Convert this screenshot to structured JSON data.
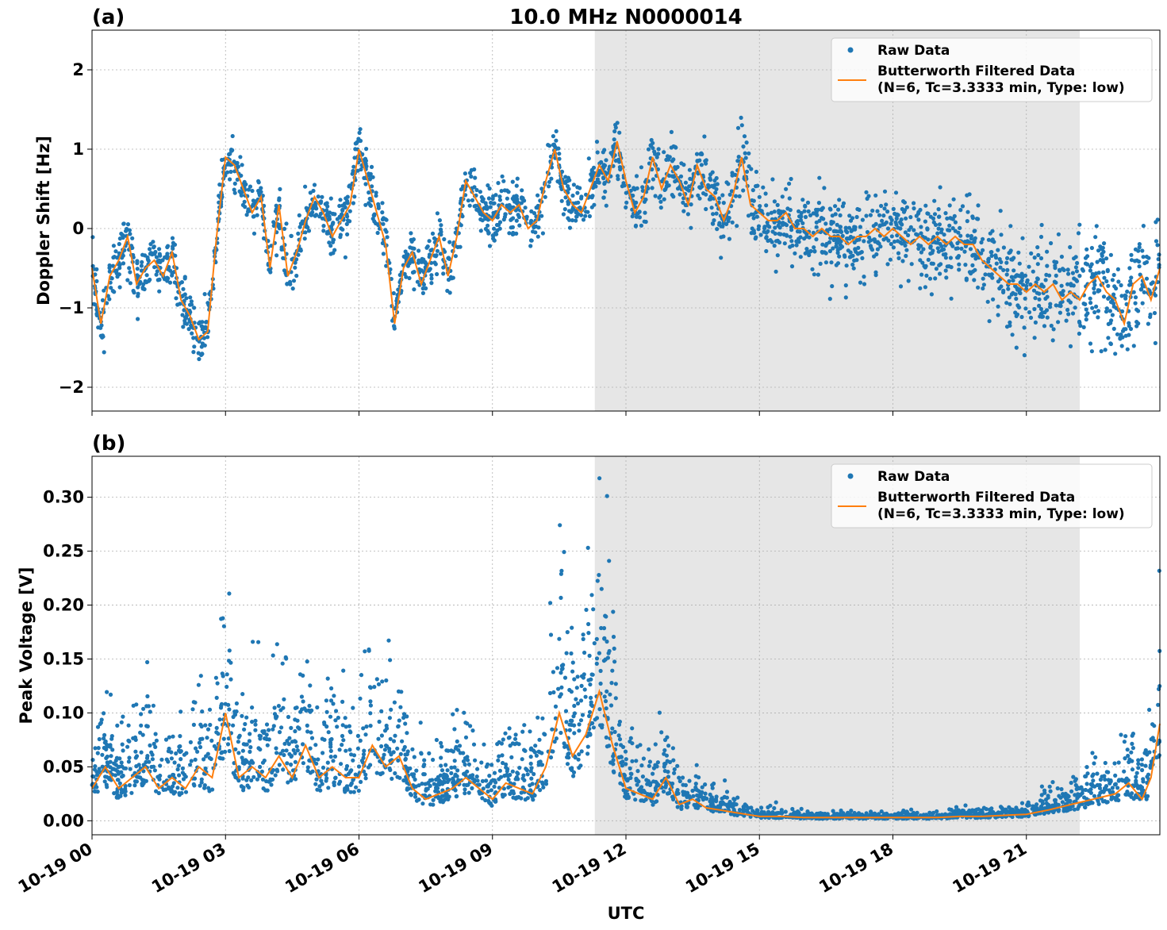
{
  "figure": {
    "title": "10.0 MHz N0000014",
    "xlabel": "UTC",
    "x_tick_labels": [
      "10-19 00",
      "10-19 03",
      "10-19 06",
      "10-19 09",
      "10-19 12",
      "10-19 15",
      "10-19 18",
      "10-19 21"
    ],
    "x_ticks_hours": [
      0,
      3,
      6,
      9,
      12,
      15,
      18,
      21
    ],
    "x_range_hours": [
      0,
      24
    ],
    "shaded_span_hours": [
      11.3,
      22.2
    ],
    "colors": {
      "raw": "#1f77b4",
      "filtered": "#ff7f0e",
      "shade": "#e6e6e6",
      "grid": "#b0b0b0"
    }
  },
  "legend": {
    "raw_label": "Raw Data",
    "filtered_label_line1": "Butterworth Filtered Data",
    "filtered_label_line2": "(N=6, Tc=3.3333 min, Type: low)",
    "placement": "top-right"
  },
  "chart_data": [
    {
      "type": "scatter",
      "panel_label": "(a)",
      "ylabel": "Doppler Shift [Hz]",
      "ylim": [
        -2.3,
        2.5
      ],
      "y_ticks": [
        -2,
        -1,
        0,
        1,
        2
      ],
      "y_tick_labels": [
        "−2",
        "−1",
        "0",
        "1",
        "2"
      ],
      "grid": true,
      "filtered_series": {
        "name": "Butterworth Filtered Data",
        "x_hours": [
          0,
          0.2,
          0.4,
          0.6,
          0.8,
          1.0,
          1.2,
          1.4,
          1.6,
          1.8,
          2.0,
          2.2,
          2.4,
          2.6,
          2.8,
          3.0,
          3.2,
          3.4,
          3.6,
          3.8,
          4.0,
          4.2,
          4.4,
          4.6,
          4.8,
          5.0,
          5.2,
          5.4,
          5.6,
          5.8,
          6.0,
          6.2,
          6.4,
          6.6,
          6.8,
          7.0,
          7.2,
          7.4,
          7.6,
          7.8,
          8.0,
          8.2,
          8.4,
          8.6,
          8.8,
          9.0,
          9.2,
          9.4,
          9.6,
          9.8,
          10.0,
          10.2,
          10.4,
          10.6,
          10.8,
          11.0,
          11.2,
          11.4,
          11.6,
          11.8,
          12.0,
          12.2,
          12.4,
          12.6,
          12.8,
          13.0,
          13.2,
          13.4,
          13.6,
          13.8,
          14.0,
          14.2,
          14.4,
          14.6,
          14.8,
          15.0,
          15.2,
          15.4,
          15.6,
          15.8,
          16.0,
          16.2,
          16.4,
          16.6,
          16.8,
          17.0,
          17.2,
          17.4,
          17.6,
          17.8,
          18.0,
          18.2,
          18.4,
          18.6,
          18.8,
          19.0,
          19.2,
          19.4,
          19.6,
          19.8,
          20.0,
          20.2,
          20.4,
          20.6,
          20.8,
          21.0,
          21.2,
          21.4,
          21.6,
          21.8,
          22.0,
          22.2,
          22.4,
          22.6,
          22.8,
          23.0,
          23.2,
          23.4,
          23.6,
          23.8,
          24.0
        ],
        "y": [
          -0.5,
          -1.2,
          -0.6,
          -0.4,
          -0.1,
          -0.7,
          -0.5,
          -0.4,
          -0.6,
          -0.3,
          -0.9,
          -1.1,
          -1.4,
          -1.3,
          -0.1,
          0.9,
          0.8,
          0.5,
          0.2,
          0.4,
          -0.5,
          0.3,
          -0.6,
          -0.3,
          0.1,
          0.4,
          0.2,
          -0.1,
          0.1,
          0.3,
          1.0,
          0.6,
          0.2,
          -0.2,
          -1.2,
          -0.5,
          -0.3,
          -0.7,
          -0.4,
          -0.1,
          -0.6,
          -0.1,
          0.6,
          0.4,
          0.2,
          0.1,
          0.3,
          0.2,
          0.3,
          0.0,
          0.1,
          0.6,
          1.0,
          0.5,
          0.3,
          0.2,
          0.5,
          0.8,
          0.6,
          1.1,
          0.6,
          0.2,
          0.4,
          0.9,
          0.5,
          0.8,
          0.6,
          0.3,
          0.8,
          0.5,
          0.4,
          0.1,
          0.4,
          0.9,
          0.3,
          0.2,
          0.1,
          0.1,
          0.2,
          0.0,
          0.0,
          -0.1,
          0.0,
          -0.1,
          -0.1,
          -0.2,
          -0.1,
          -0.1,
          0.0,
          -0.1,
          0.0,
          -0.1,
          -0.2,
          -0.1,
          -0.2,
          -0.1,
          -0.2,
          -0.1,
          -0.2,
          -0.2,
          -0.4,
          -0.5,
          -0.6,
          -0.7,
          -0.7,
          -0.8,
          -0.7,
          -0.8,
          -0.7,
          -0.9,
          -0.8,
          -0.9,
          -0.7,
          -0.6,
          -0.8,
          -0.9,
          -1.2,
          -0.7,
          -0.6,
          -0.9,
          -0.5
        ]
      },
      "raw_series": {
        "name": "Raw Data",
        "spread": [
          0.3,
          0.3,
          0.3,
          0.3,
          0.3,
          0.3,
          0.3,
          0.3,
          0.35,
          0.4,
          0.45,
          0.5,
          0.55,
          0.6,
          0.65
        ]
      }
    },
    {
      "type": "scatter",
      "panel_label": "(b)",
      "ylabel": "Peak Voltage [V]",
      "ylim": [
        -0.013,
        0.338
      ],
      "y_ticks": [
        0.0,
        0.05,
        0.1,
        0.15,
        0.2,
        0.25,
        0.3
      ],
      "y_tick_labels": [
        "0.00",
        "0.05",
        "0.10",
        "0.15",
        "0.20",
        "0.25",
        "0.30"
      ],
      "grid": true,
      "filtered_series": {
        "name": "Butterworth Filtered Data",
        "x_hours": [
          0,
          0.3,
          0.6,
          0.9,
          1.2,
          1.5,
          1.8,
          2.1,
          2.4,
          2.7,
          3.0,
          3.3,
          3.6,
          3.9,
          4.2,
          4.5,
          4.8,
          5.1,
          5.4,
          5.7,
          6.0,
          6.3,
          6.6,
          6.9,
          7.2,
          7.5,
          7.8,
          8.1,
          8.4,
          8.7,
          9.0,
          9.3,
          9.6,
          9.9,
          10.2,
          10.5,
          10.8,
          11.1,
          11.4,
          11.7,
          12.0,
          12.3,
          12.6,
          12.9,
          13.2,
          13.5,
          13.8,
          14.1,
          14.4,
          14.7,
          15.0,
          15.5,
          16.0,
          16.5,
          17.0,
          17.5,
          18.0,
          18.5,
          19.0,
          19.5,
          20.0,
          20.5,
          21.0,
          21.5,
          22.0,
          22.5,
          23.0,
          23.3,
          23.6,
          23.8,
          24.0
        ],
        "y": [
          0.03,
          0.05,
          0.03,
          0.04,
          0.05,
          0.03,
          0.04,
          0.03,
          0.05,
          0.04,
          0.1,
          0.04,
          0.05,
          0.04,
          0.06,
          0.04,
          0.07,
          0.04,
          0.05,
          0.04,
          0.04,
          0.07,
          0.05,
          0.06,
          0.03,
          0.02,
          0.025,
          0.03,
          0.04,
          0.03,
          0.02,
          0.035,
          0.03,
          0.025,
          0.05,
          0.1,
          0.06,
          0.08,
          0.12,
          0.07,
          0.03,
          0.025,
          0.02,
          0.04,
          0.015,
          0.02,
          0.012,
          0.01,
          0.008,
          0.006,
          0.004,
          0.004,
          0.003,
          0.003,
          0.003,
          0.003,
          0.003,
          0.003,
          0.003,
          0.004,
          0.004,
          0.005,
          0.006,
          0.01,
          0.015,
          0.02,
          0.025,
          0.035,
          0.02,
          0.04,
          0.09
        ]
      },
      "raw_series": {
        "name": "Raw Data",
        "spread_factor": 1.6
      }
    }
  ]
}
